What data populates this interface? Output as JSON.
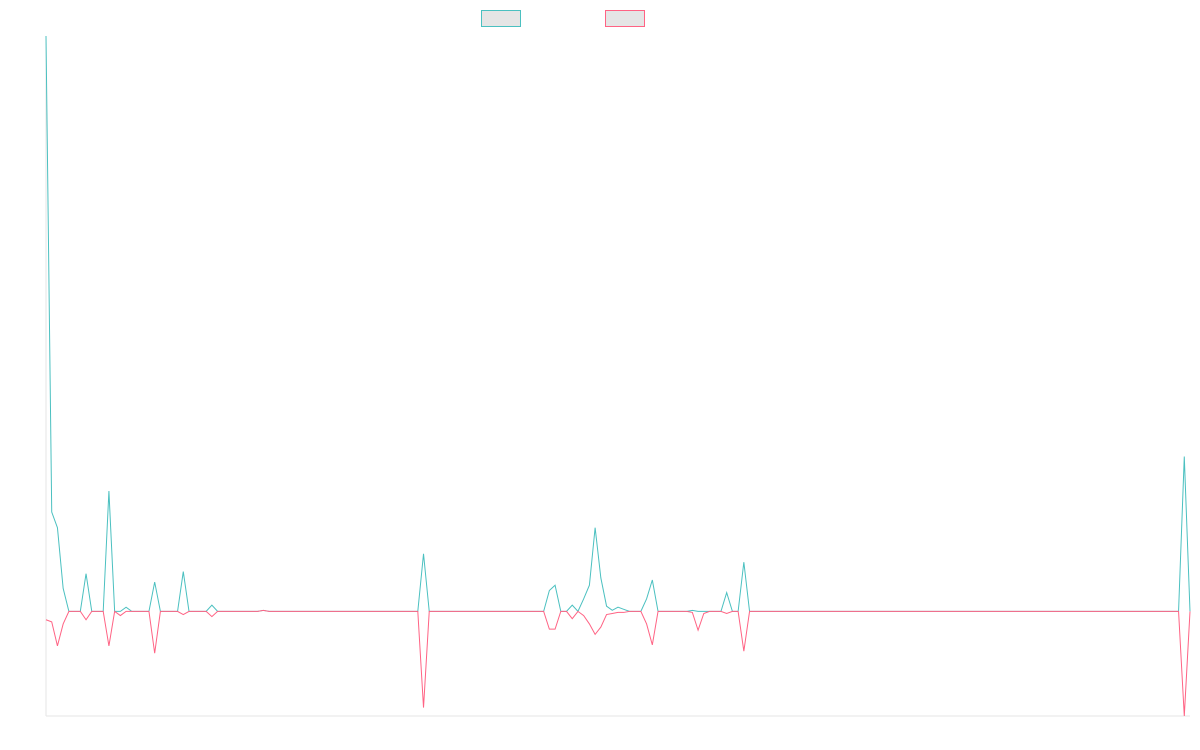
{
  "chart_data": {
    "type": "line",
    "title": "",
    "xlabel": "",
    "ylabel": "",
    "grid": false,
    "legend_position": "top-center",
    "ylim": [
      -100,
      550
    ],
    "x_count": 200,
    "series": [
      {
        "color": "#4bc0c0",
        "fill": "#e5e5e5",
        "points": [
          [
            0,
            550
          ],
          [
            1,
            95
          ],
          [
            2,
            80
          ],
          [
            3,
            22
          ],
          [
            4,
            0
          ],
          [
            6,
            0
          ],
          [
            7,
            36
          ],
          [
            8,
            0
          ],
          [
            10,
            0
          ],
          [
            11,
            115
          ],
          [
            12,
            0
          ],
          [
            13,
            0
          ],
          [
            14,
            4
          ],
          [
            15,
            0
          ],
          [
            18,
            0
          ],
          [
            19,
            28
          ],
          [
            20,
            0
          ],
          [
            23,
            0
          ],
          [
            24,
            38
          ],
          [
            25,
            0
          ],
          [
            28,
            0
          ],
          [
            29,
            6
          ],
          [
            30,
            0
          ],
          [
            37,
            0
          ],
          [
            38,
            1
          ],
          [
            39,
            0
          ],
          [
            65,
            0
          ],
          [
            66,
            55
          ],
          [
            67,
            0
          ],
          [
            87,
            0
          ],
          [
            88,
            20
          ],
          [
            89,
            25
          ],
          [
            90,
            0
          ],
          [
            91,
            0
          ],
          [
            92,
            6
          ],
          [
            93,
            0
          ],
          [
            94,
            12
          ],
          [
            95,
            25
          ],
          [
            96,
            80
          ],
          [
            97,
            32
          ],
          [
            98,
            5
          ],
          [
            99,
            1
          ],
          [
            100,
            4
          ],
          [
            101,
            2
          ],
          [
            102,
            0
          ],
          [
            104,
            0
          ],
          [
            105,
            12
          ],
          [
            106,
            30
          ],
          [
            107,
            0
          ],
          [
            112,
            0
          ],
          [
            113,
            1
          ],
          [
            114,
            0
          ],
          [
            116,
            0
          ],
          [
            117,
            0
          ],
          [
            118,
            0
          ],
          [
            119,
            18
          ],
          [
            120,
            0
          ],
          [
            121,
            0
          ],
          [
            122,
            47
          ],
          [
            123,
            0
          ],
          [
            198,
            0
          ],
          [
            199,
            148
          ],
          [
            200,
            0
          ]
        ]
      },
      {
        "color": "#ff6384",
        "fill": "#e5e5e5",
        "points": [
          [
            0,
            -8
          ],
          [
            1,
            -10
          ],
          [
            2,
            -33
          ],
          [
            3,
            -12
          ],
          [
            4,
            0
          ],
          [
            6,
            0
          ],
          [
            7,
            -8
          ],
          [
            8,
            0
          ],
          [
            10,
            0
          ],
          [
            11,
            -33
          ],
          [
            12,
            0
          ],
          [
            13,
            -4
          ],
          [
            14,
            0
          ],
          [
            18,
            0
          ],
          [
            19,
            -40
          ],
          [
            20,
            0
          ],
          [
            23,
            0
          ],
          [
            24,
            -3
          ],
          [
            25,
            0
          ],
          [
            28,
            0
          ],
          [
            29,
            -5
          ],
          [
            30,
            0
          ],
          [
            37,
            0
          ],
          [
            38,
            1
          ],
          [
            39,
            0
          ],
          [
            65,
            0
          ],
          [
            66,
            -92
          ],
          [
            67,
            0
          ],
          [
            87,
            0
          ],
          [
            88,
            -17
          ],
          [
            89,
            -17
          ],
          [
            90,
            0
          ],
          [
            91,
            0
          ],
          [
            92,
            -7
          ],
          [
            93,
            0
          ],
          [
            94,
            -4
          ],
          [
            95,
            -12
          ],
          [
            96,
            -22
          ],
          [
            97,
            -15
          ],
          [
            98,
            -3
          ],
          [
            99,
            -2
          ],
          [
            100,
            -1
          ],
          [
            101,
            -1
          ],
          [
            102,
            0
          ],
          [
            104,
            0
          ],
          [
            105,
            -12
          ],
          [
            106,
            -32
          ],
          [
            107,
            0
          ],
          [
            112,
            0
          ],
          [
            113,
            -1
          ],
          [
            114,
            -18
          ],
          [
            115,
            -2
          ],
          [
            116,
            0
          ],
          [
            118,
            0
          ],
          [
            119,
            -2
          ],
          [
            120,
            0
          ],
          [
            121,
            0
          ],
          [
            122,
            -38
          ],
          [
            123,
            0
          ],
          [
            198,
            0
          ],
          [
            199,
            -100
          ],
          [
            200,
            0
          ]
        ]
      }
    ]
  }
}
